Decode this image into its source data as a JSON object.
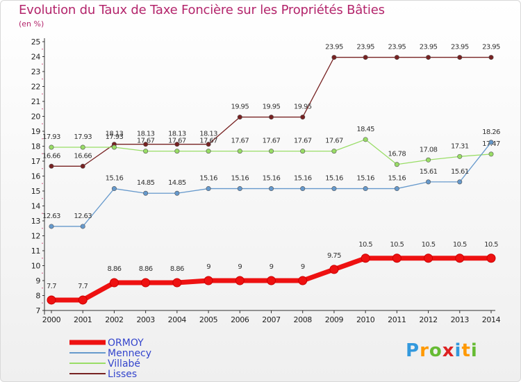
{
  "chart_data": {
    "type": "line",
    "title": "Evolution du Taux de Taxe Foncière sur les Propriétés Bâties",
    "ylabel": "(en %)",
    "xlabel": "",
    "ylim": [
      7,
      25
    ],
    "yticks": [
      7,
      8,
      9,
      10,
      11,
      12,
      13,
      14,
      15,
      16,
      17,
      18,
      19,
      20,
      21,
      22,
      23,
      24,
      25
    ],
    "x": [
      "2000",
      "2001",
      "2002",
      "2003",
      "2004",
      "2005",
      "2006",
      "2007",
      "2008",
      "2009",
      "2010",
      "2011",
      "2012",
      "2013",
      "2014"
    ],
    "series": [
      {
        "name": "ORMOY",
        "color": "#ee1111",
        "values": [
          7.7,
          7.7,
          8.86,
          8.86,
          8.86,
          9,
          9,
          9,
          9,
          9.75,
          10.5,
          10.5,
          10.5,
          10.5,
          10.5
        ],
        "labels": [
          "7.7",
          "7.7",
          "8.86",
          "8.86",
          "8.86",
          "9",
          "9",
          "9",
          "9",
          "9.75",
          "10.5",
          "10.5",
          "10.5",
          "10.5",
          "10.5"
        ]
      },
      {
        "name": "Mennecy",
        "color": "#6699cc",
        "values": [
          12.63,
          12.63,
          15.16,
          14.85,
          14.85,
          15.16,
          15.16,
          15.16,
          15.16,
          15.16,
          15.16,
          15.16,
          15.61,
          15.61,
          18.26
        ],
        "labels": [
          "12.63",
          "12.63",
          "15.16",
          "14.85",
          "14.85",
          "15.16",
          "15.16",
          "15.16",
          "15.16",
          "15.16",
          "15.16",
          "15.16",
          "15.61",
          "15.61",
          "18.26"
        ]
      },
      {
        "name": "Villabé",
        "color": "#99dd66",
        "values": [
          17.93,
          17.93,
          17.93,
          17.67,
          17.67,
          17.67,
          17.67,
          17.67,
          17.67,
          17.67,
          18.45,
          16.78,
          17.08,
          17.31,
          17.47
        ],
        "labels": [
          "17.93",
          "17.93",
          "17.93",
          "17.67",
          "17.67",
          "17.67",
          "17.67",
          "17.67",
          "17.67",
          "17.67",
          "18.45",
          "16.78",
          "17.08",
          "17.31",
          "17.47"
        ]
      },
      {
        "name": "Lisses",
        "color": "#772222",
        "values": [
          16.66,
          16.66,
          18.13,
          18.13,
          18.13,
          18.13,
          19.95,
          19.95,
          19.95,
          23.95,
          23.95,
          23.95,
          23.95,
          23.95,
          23.95
        ],
        "labels": [
          "16.66",
          "16.66",
          "18.13",
          "18.13",
          "18.13",
          "18.13",
          "19.95",
          "19.95",
          "19.95",
          "23.95",
          "23.95",
          "23.95",
          "23.95",
          "23.95",
          "23.95"
        ]
      }
    ],
    "legend_position": "bottom-left",
    "grid": false
  },
  "logo": {
    "letters": [
      {
        "ch": "P",
        "color": "#3399dd"
      },
      {
        "ch": "r",
        "color": "#ff9900"
      },
      {
        "ch": "o",
        "color": "#66bb33"
      },
      {
        "ch": "x",
        "color": "#dd2222"
      },
      {
        "ch": "i",
        "color": "#3399dd"
      },
      {
        "ch": "t",
        "color": "#ff9900"
      },
      {
        "ch": "i",
        "color": "#66bb33"
      }
    ]
  }
}
